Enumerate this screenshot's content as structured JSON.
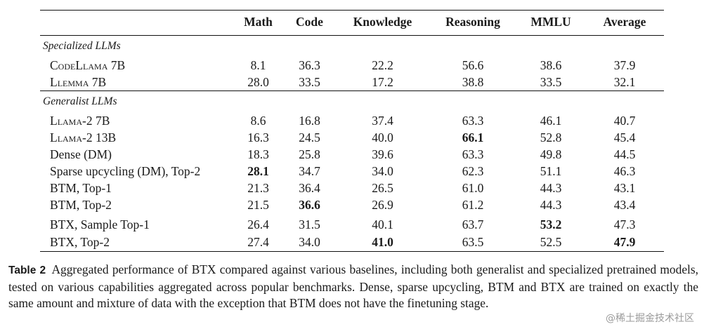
{
  "table": {
    "headers": [
      "",
      "Math",
      "Code",
      "Knowledge",
      "Reasoning",
      "MMLU",
      "Average"
    ],
    "groups": [
      {
        "title": "Specialized LLMs",
        "rows": [
          {
            "model": "CodeLlama 7B",
            "values": [
              "8.1",
              "36.3",
              "22.2",
              "56.6",
              "38.6",
              "37.9"
            ],
            "bold": []
          },
          {
            "model": "Llemma 7B",
            "values": [
              "28.0",
              "33.5",
              "17.2",
              "38.8",
              "33.5",
              "32.1"
            ],
            "bold": []
          }
        ]
      },
      {
        "title": "Generalist LLMs",
        "rows": [
          {
            "model": "Llama-2 7B",
            "values": [
              "8.6",
              "16.8",
              "37.4",
              "63.3",
              "46.1",
              "40.7"
            ],
            "bold": []
          },
          {
            "model": "Llama-2 13B",
            "values": [
              "16.3",
              "24.5",
              "40.0",
              "66.1",
              "52.8",
              "45.4"
            ],
            "bold": [
              3
            ]
          },
          {
            "model": "Dense (DM)",
            "values": [
              "18.3",
              "25.8",
              "39.6",
              "63.3",
              "49.8",
              "44.5"
            ],
            "bold": []
          },
          {
            "model": "Sparse upcycling (DM), Top-2",
            "values": [
              "28.1",
              "34.7",
              "34.0",
              "62.3",
              "51.1",
              "46.3"
            ],
            "bold": [
              0
            ]
          },
          {
            "model": "BTM, Top-1",
            "values": [
              "21.3",
              "36.4",
              "26.5",
              "61.0",
              "44.3",
              "43.1"
            ],
            "bold": []
          },
          {
            "model": "BTM, Top-2",
            "values": [
              "21.5",
              "36.6",
              "26.9",
              "61.2",
              "44.3",
              "43.4"
            ],
            "bold": [
              1
            ]
          },
          {
            "model": "BTX, Sample Top-1",
            "values": [
              "26.4",
              "31.5",
              "40.1",
              "63.7",
              "53.2",
              "47.3"
            ],
            "bold": [
              4
            ]
          },
          {
            "model": "BTX, Top-2",
            "values": [
              "27.4",
              "34.0",
              "41.0",
              "63.5",
              "52.5",
              "47.9"
            ],
            "bold": [
              2,
              5
            ]
          }
        ]
      }
    ]
  },
  "caption": {
    "label": "Table 2",
    "text": "Aggregated performance of BTX compared against various baselines, including both generalist and specialized pretrained models, tested on various capabilities aggregated across popular benchmarks. Dense, sparse upcycling, BTM and BTX are trained on exactly the same amount and mixture of data with the exception that BTM does not have the finetuning stage."
  },
  "watermark": "@稀土掘金技术社区"
}
